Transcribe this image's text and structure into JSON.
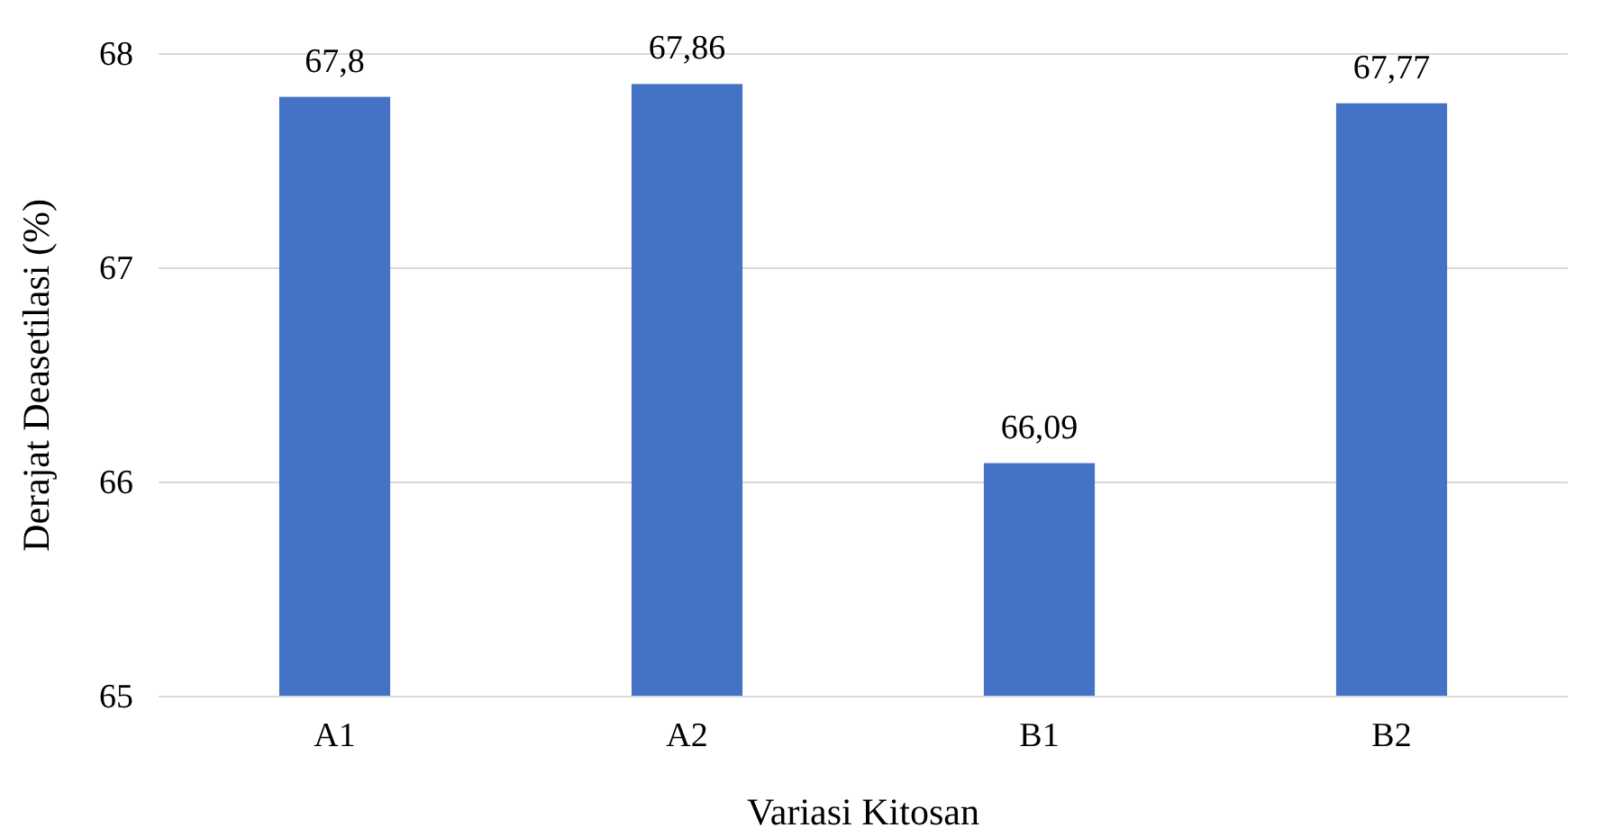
{
  "chart_data": {
    "type": "bar",
    "xlabel": "Variasi Kitosan",
    "ylabel": "Derajat Deasetilasi (%)",
    "categories": [
      "A1",
      "A2",
      "B1",
      "B2"
    ],
    "values": [
      67.8,
      67.86,
      66.09,
      67.77
    ],
    "value_labels": [
      "67,8",
      "67,86",
      "66,09",
      "67,77"
    ],
    "color": "#4472c4",
    "ylim": [
      65,
      68
    ],
    "yticks": [
      65,
      66,
      67,
      68
    ],
    "grid": "y"
  }
}
